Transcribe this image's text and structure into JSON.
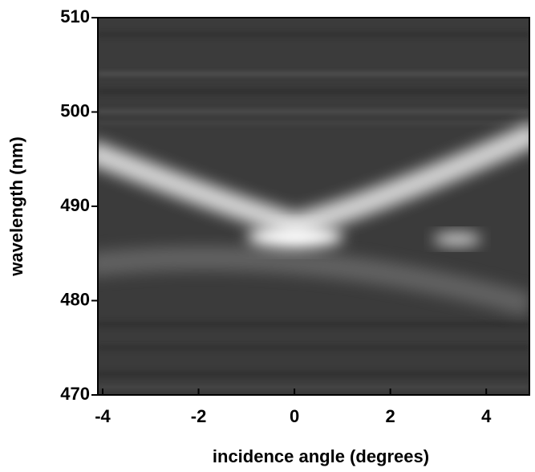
{
  "chart_data": {
    "type": "heatmap",
    "x_label": "incidence angle (degrees)",
    "y_label": "wavelength (nm)",
    "xlim": [
      -4.1,
      4.9
    ],
    "xticks": [
      -4,
      -2,
      0,
      2,
      4
    ],
    "ylim": [
      470,
      510
    ],
    "yticks": [
      470,
      480,
      490,
      500,
      510
    ]
  }
}
